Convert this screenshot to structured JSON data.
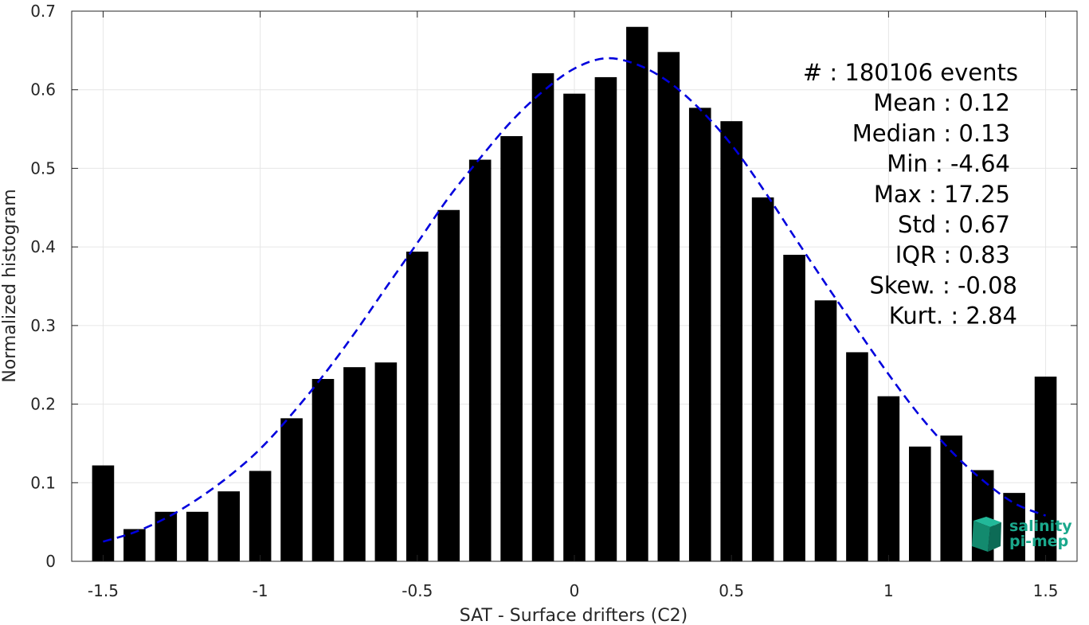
{
  "chart_data": {
    "type": "bar",
    "xlabel": "SAT - Surface drifters (C2)",
    "ylabel": "Normalized histogram",
    "xlim": [
      -1.6,
      1.6
    ],
    "ylim": [
      0,
      0.7
    ],
    "xticks": [
      -1.5,
      -1,
      -0.5,
      0,
      0.5,
      1,
      1.5
    ],
    "xtick_labels": [
      "-1.5",
      "-1",
      "-0.5",
      "0",
      "0.5",
      "1",
      "1.5"
    ],
    "yticks": [
      0,
      0.1,
      0.2,
      0.3,
      0.4,
      0.5,
      0.6,
      0.7
    ],
    "ytick_labels": [
      "0",
      "0.1",
      "0.2",
      "0.3",
      "0.4",
      "0.5",
      "0.6",
      "0.7"
    ],
    "grid": true,
    "bar_color": "#000000",
    "bins": {
      "centers": [
        -1.5,
        -1.4,
        -1.3,
        -1.2,
        -1.1,
        -1.0,
        -0.9,
        -0.8,
        -0.7,
        -0.6,
        -0.5,
        -0.4,
        -0.3,
        -0.2,
        -0.1,
        0.0,
        0.1,
        0.2,
        0.3,
        0.4,
        0.5,
        0.6,
        0.7,
        0.8,
        0.9,
        1.0,
        1.1,
        1.2,
        1.3,
        1.4,
        1.5
      ],
      "values": [
        0.122,
        0.041,
        0.063,
        0.063,
        0.089,
        0.115,
        0.182,
        0.232,
        0.247,
        0.253,
        0.394,
        0.447,
        0.511,
        0.541,
        0.621,
        0.595,
        0.616,
        0.68,
        0.648,
        0.577,
        0.56,
        0.463,
        0.39,
        0.332,
        0.266,
        0.21,
        0.146,
        0.16,
        0.116,
        0.087,
        0.235
      ],
      "width": 0.07
    },
    "fit_curve": {
      "style": "dashed",
      "color": "#0000dd",
      "x": [
        -1.5,
        -1.4,
        -1.3,
        -1.2,
        -1.1,
        -1.0,
        -0.9,
        -0.8,
        -0.7,
        -0.6,
        -0.5,
        -0.4,
        -0.3,
        -0.2,
        -0.1,
        0.0,
        0.1,
        0.2,
        0.3,
        0.4,
        0.5,
        0.6,
        0.7,
        0.8,
        0.9,
        1.0,
        1.1,
        1.2,
        1.3,
        1.4,
        1.5
      ],
      "y": [
        0.025,
        0.037,
        0.055,
        0.079,
        0.108,
        0.143,
        0.187,
        0.236,
        0.29,
        0.348,
        0.405,
        0.463,
        0.513,
        0.56,
        0.598,
        0.627,
        0.64,
        0.632,
        0.61,
        0.575,
        0.53,
        0.474,
        0.413,
        0.353,
        0.295,
        0.238,
        0.185,
        0.14,
        0.103,
        0.074,
        0.058
      ]
    },
    "stats_box": {
      "placement": "top-right",
      "lines": [
        "#  : 180106 events",
        "Mean : 0.12",
        "Median : 0.13",
        "Min : -4.64",
        "Max : 17.25",
        "Std : 0.67",
        "IQR : 0.83",
        "Skew. : -0.08",
        "Kurt. : 2.84"
      ]
    }
  },
  "logo": {
    "line1": "salinity",
    "line2": "pi-mep",
    "placement": "bottom-right",
    "color": "#1aa88c"
  }
}
